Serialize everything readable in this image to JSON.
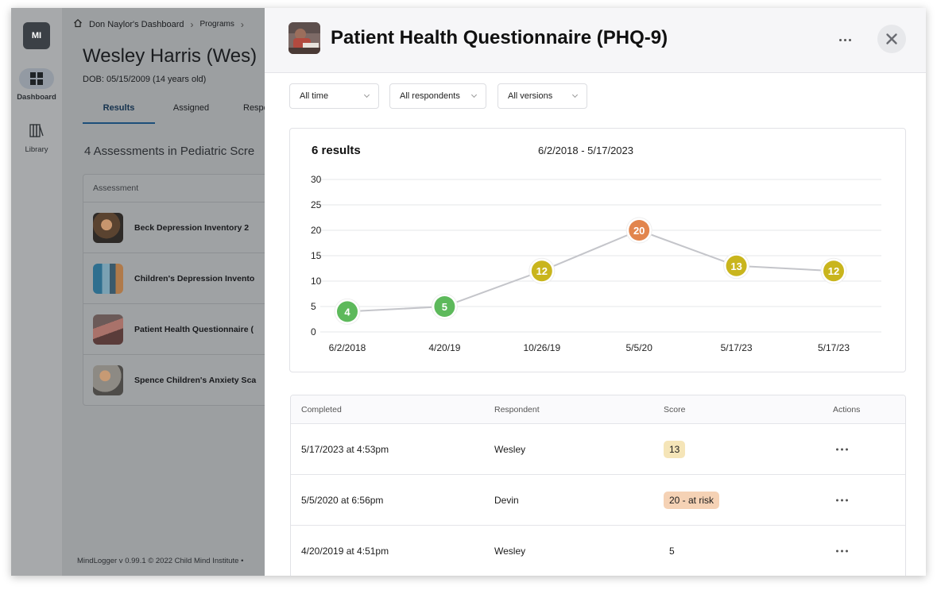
{
  "rail": {
    "avatar": "MI",
    "items": [
      {
        "label": "Dashboard",
        "icon": "grid-icon"
      },
      {
        "label": "Library",
        "icon": "books-icon"
      }
    ]
  },
  "background": {
    "breadcrumbs": [
      "Don Naylor's Dashboard",
      "Programs"
    ],
    "patient_name": "Wesley Harris (Wes)",
    "dob": "DOB: 05/15/2009 (14 years old)",
    "tabs": [
      "Results",
      "Assigned",
      "Respo"
    ],
    "assessments_heading": "4 Assessments in Pediatric Scre",
    "table_header": "Assessment",
    "assessments": [
      "Beck Depression Inventory 2",
      "Children's Depression Invento",
      "Patient Health Questionnaire (",
      "Spence Children's Anxiety Sca"
    ],
    "footer": "MindLogger v 0.99.1 © 2022 Child Mind Institute •"
  },
  "drawer": {
    "title": "Patient Health Questionnaire (PHQ-9)",
    "filters": [
      "All time",
      "All respondents",
      "All versions"
    ],
    "result_count": "6 results",
    "date_range": "6/2/2018 - 5/17/2023"
  },
  "chart_data": {
    "type": "line",
    "x": [
      "6/2/2018",
      "4/20/19",
      "10/26/19",
      "5/5/20",
      "5/17/23",
      "5/17/23"
    ],
    "values": [
      4,
      5,
      12,
      20,
      13,
      12
    ],
    "point_colors": [
      "#5db95b",
      "#5db95b",
      "#c9b51d",
      "#e2854d",
      "#c9b51d",
      "#c9b51d"
    ],
    "line_color": "#c4c5ca",
    "ylim": [
      0,
      30
    ],
    "yticks": [
      0,
      5,
      10,
      15,
      20,
      25,
      30
    ],
    "grid": true
  },
  "results_table": {
    "headers": [
      "Completed",
      "Respondent",
      "Score",
      "Actions"
    ],
    "rows": [
      {
        "completed": "5/17/2023 at 4:53pm",
        "respondent": "Wesley",
        "score": "13",
        "badge_bg": "#f5e5b8"
      },
      {
        "completed": "5/5/2020 at 6:56pm",
        "respondent": "Devin",
        "score": "20 - at risk",
        "badge_bg": "#f5d2b5"
      },
      {
        "completed": "4/20/2019 at 4:51pm",
        "respondent": "Wesley",
        "score": "5",
        "badge_bg": ""
      }
    ]
  }
}
